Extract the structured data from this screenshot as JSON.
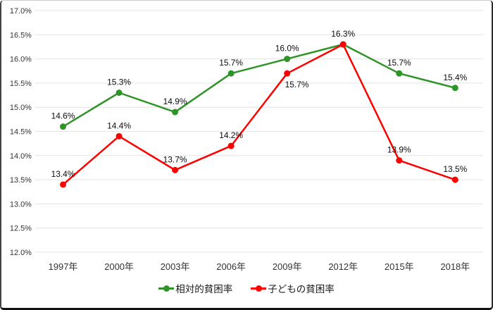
{
  "chart_data": {
    "type": "line",
    "title": "",
    "xlabel": "",
    "ylabel": "",
    "categories": [
      "1997年",
      "2000年",
      "2003年",
      "2006年",
      "2009年",
      "2012年",
      "2015年",
      "2018年"
    ],
    "series": [
      {
        "name": "相対的貧困率",
        "color": "#2E9428",
        "values": [
          14.6,
          15.3,
          14.9,
          15.7,
          16.0,
          16.3,
          15.7,
          15.4
        ],
        "label_overrides": {}
      },
      {
        "name": "子どもの貧困率",
        "color": "#FF0000",
        "values": [
          13.4,
          14.4,
          13.7,
          14.2,
          15.7,
          16.3,
          13.9,
          13.5
        ],
        "label_overrides": {
          "4": {
            "dx": 14,
            "dy": 31
          },
          "5": {
            "hidden": true
          }
        }
      }
    ],
    "ylim": [
      12.0,
      17.0
    ],
    "ytick_step": 0.5,
    "y_tick_labels": [
      "17.0%",
      "16.5%",
      "16.0%",
      "15.5%",
      "15.0%",
      "14.5%",
      "14.0%",
      "13.5%",
      "13.0%",
      "12.5%",
      "12.0%"
    ],
    "value_label_suffix": "%",
    "grid": true,
    "legend_position": "bottom",
    "colors": {
      "grid": "#E4E4E4",
      "axis_text": "#333333",
      "value_label": "#0d0d0d",
      "background": "#FFFFFF"
    }
  }
}
